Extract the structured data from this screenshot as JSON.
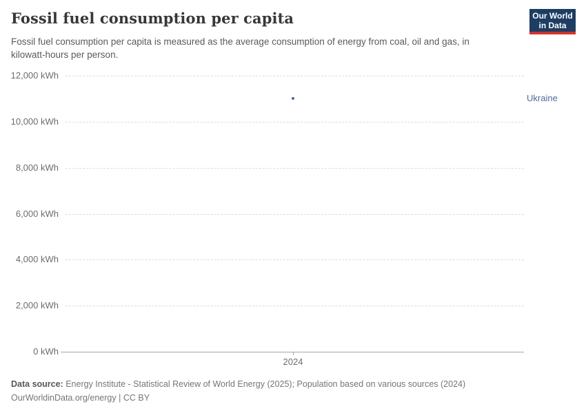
{
  "header": {
    "title": "Fossil fuel consumption per capita",
    "subtitle": "Fossil fuel consumption per capita is measured as the average consumption of energy from coal, oil and gas, in kilowatt-hours per person.",
    "logo": {
      "line1": "Our World",
      "line2": "in Data"
    }
  },
  "colors": {
    "logo_bg": "#1d3d63",
    "logo_stripe": "#d0342c",
    "series_blue": "#4c6a9c",
    "grid": "#dcdcdc",
    "axis": "#a6a6a6"
  },
  "chart_data": {
    "type": "scatter",
    "title": "Fossil fuel consumption per capita",
    "xlabel": "",
    "ylabel": "kWh",
    "x": [
      2024
    ],
    "xticks": [
      "2024"
    ],
    "series": [
      {
        "name": "Ukraine",
        "color": "#4c6a9c",
        "values": [
          11000
        ]
      }
    ],
    "ylim": [
      0,
      12000
    ],
    "ytick_step": 2000,
    "ytick_suffix": " kWh",
    "grid": "horizontal-dashed",
    "legend_position": "right-of-point"
  },
  "footer": {
    "source_label": "Data source:",
    "source_text": " Energy Institute - Statistical Review of World Energy (2025); Population based on various sources (2024)",
    "link": "OurWorldinData.org/energy",
    "separator": " | ",
    "license": "CC BY"
  }
}
